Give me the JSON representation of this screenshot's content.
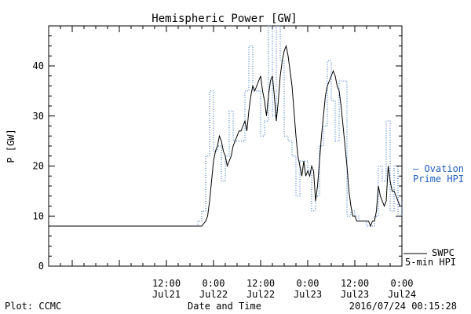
{
  "chart_data": {
    "type": "line",
    "title": "Hemispheric Power [GW]",
    "ylabel": "P [GW]",
    "xlabel": "Date and Time",
    "ylim": [
      0,
      48
    ],
    "xlim": [
      -18,
      72
    ],
    "y_ticks": [
      0,
      10,
      20,
      30,
      40
    ],
    "x_ticks": [
      {
        "x": 12,
        "time": "12:00",
        "date": "Jul21"
      },
      {
        "x": 24,
        "time": "0:00",
        "date": "Jul22"
      },
      {
        "x": 36,
        "time": "12:00",
        "date": "Jul22"
      },
      {
        "x": 48,
        "time": "0:00",
        "date": "Jul23"
      },
      {
        "x": 60,
        "time": "12:00",
        "date": "Jul23"
      },
      {
        "x": 72,
        "time": "0:00",
        "date": "Jul24"
      }
    ],
    "x_unit_note": "hours after 2016/07/21 00:00 (as printed on time axis)",
    "series": [
      {
        "name": "Ovation Prime HPI",
        "style": "dotted-step",
        "color": "#1f5fbf",
        "x": [
          -18,
          20,
          21,
          22,
          23,
          24,
          25,
          26,
          27,
          28,
          29,
          30,
          31,
          32,
          33,
          34,
          35,
          36,
          37,
          38,
          39,
          40,
          41,
          42,
          43,
          44,
          45,
          46,
          47,
          48,
          49,
          50,
          51,
          52,
          53,
          54,
          55,
          56,
          57,
          58,
          59,
          60,
          61,
          62,
          63,
          64,
          65,
          66,
          67,
          68,
          69,
          70,
          71,
          72
        ],
        "y": [
          8,
          9,
          11,
          22,
          35,
          23,
          24,
          17,
          22,
          31,
          25,
          25,
          25,
          35,
          44,
          35,
          35,
          26,
          29,
          48,
          30,
          48,
          41,
          26,
          25,
          22,
          14,
          21,
          21,
          19,
          11,
          14,
          24,
          28,
          41,
          33,
          25,
          37,
          37,
          10,
          11,
          10,
          9,
          9,
          8,
          8,
          10,
          20,
          17,
          29,
          11,
          20,
          10,
          13
        ]
      },
      {
        "name": "SWPC 5-min HPI",
        "style": "solid",
        "color": "#000000",
        "x": [
          -18,
          21,
          22,
          22.5,
          23,
          23.5,
          24,
          24.5,
          25,
          25.5,
          26,
          26.5,
          27,
          27.5,
          28,
          28.5,
          29,
          29.5,
          30,
          30.5,
          31,
          31.5,
          32,
          32.5,
          33,
          33.5,
          34,
          34.5,
          35,
          35.5,
          36,
          36.5,
          37,
          37.5,
          38,
          38.5,
          39,
          39.5,
          40,
          40.5,
          41,
          41.5,
          42,
          42.5,
          43,
          43.5,
          44,
          44.5,
          45,
          45.5,
          46,
          46.5,
          47,
          47.5,
          48,
          48.5,
          49,
          49.5,
          50,
          50.5,
          51,
          51.5,
          52,
          52.5,
          53,
          53.5,
          54,
          54.5,
          55,
          55.5,
          56,
          56.5,
          57,
          57.5,
          58,
          58.5,
          59,
          59.5,
          60,
          60.5,
          61,
          61.5,
          62,
          62.5,
          63,
          63.5,
          64,
          64.5,
          65,
          65.5,
          66,
          66.5,
          67,
          67.5,
          68,
          68.5,
          69,
          69.5,
          70,
          70.5,
          71,
          71.5,
          72
        ],
        "y": [
          8,
          8,
          9,
          10,
          13,
          17,
          21,
          23,
          24,
          26,
          25,
          23,
          22,
          20,
          21,
          22,
          24,
          25,
          26,
          27,
          27,
          28,
          29,
          27,
          31,
          34,
          36,
          35,
          36,
          37,
          38,
          35,
          33,
          30,
          34,
          37,
          38,
          34,
          29,
          33,
          38,
          41,
          43,
          44,
          42,
          39,
          36,
          31,
          26,
          22,
          20,
          18,
          21,
          18,
          19,
          18,
          20,
          19,
          13,
          16,
          21,
          26,
          30,
          34,
          36,
          37,
          38,
          39,
          38,
          36,
          35,
          32,
          28,
          24,
          20,
          15,
          12,
          10,
          10,
          9,
          9,
          9,
          9,
          9,
          9,
          9,
          8,
          9,
          9,
          11,
          16,
          14,
          13,
          12,
          13,
          20,
          17,
          15,
          15,
          14,
          13,
          12,
          12
        ]
      }
    ],
    "legend": {
      "ovation_line1": "— Ovation",
      "ovation_line2": "Prime HPI",
      "swpc_line1": "SWPC",
      "swpc_line2": "5-min HPI",
      "placement": "right"
    }
  },
  "footer": {
    "left": "Plot: CCMC",
    "center": "Date and Time",
    "right": "2016/07/24 00:15:28"
  }
}
